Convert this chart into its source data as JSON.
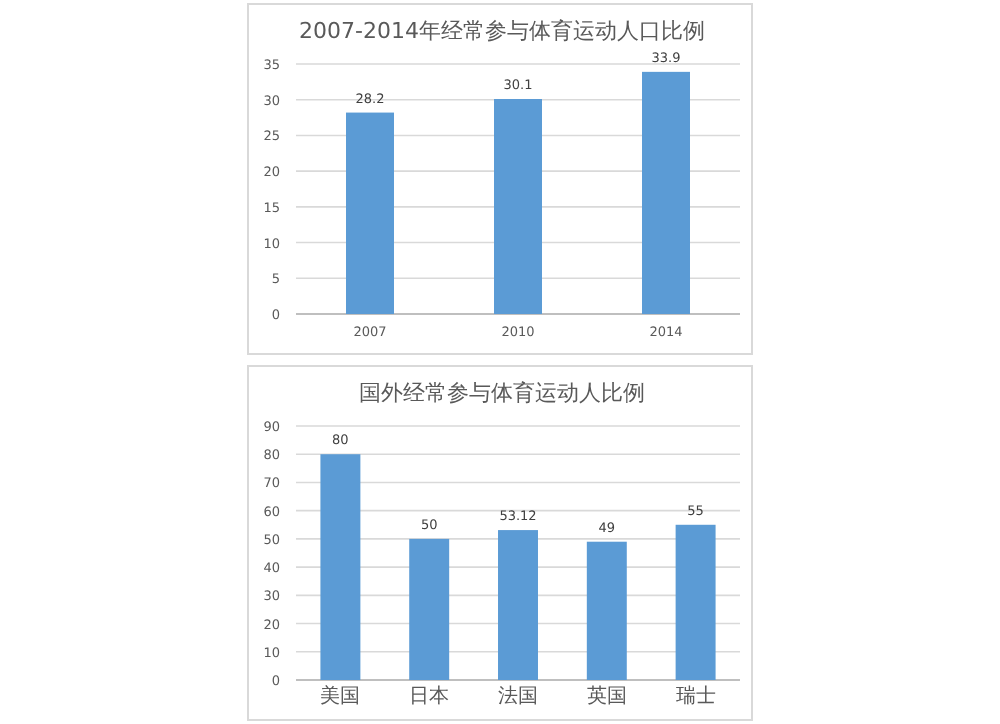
{
  "chart_data": [
    {
      "type": "bar",
      "title": "2007-2014年经常参与体育运动人口比例",
      "categories": [
        "2007",
        "2010",
        "2014"
      ],
      "values": [
        28.2,
        30.1,
        33.9
      ],
      "color": "#5b9bd5",
      "ylim": [
        0,
        35
      ],
      "yticks": [
        0,
        5,
        10,
        15,
        20,
        25,
        30,
        35
      ],
      "grid": "y",
      "data_labels": true
    },
    {
      "type": "bar",
      "title": "国外经常参与体育运动人比例",
      "categories": [
        "美国",
        "日本",
        "法国",
        "英国",
        "瑞士"
      ],
      "values": [
        80,
        50,
        53.12,
        49,
        55
      ],
      "color": "#5b9bd5",
      "ylim": [
        0,
        90
      ],
      "yticks": [
        0,
        10,
        20,
        30,
        40,
        50,
        60,
        70,
        80,
        90
      ],
      "grid": "y",
      "data_labels": true
    }
  ]
}
